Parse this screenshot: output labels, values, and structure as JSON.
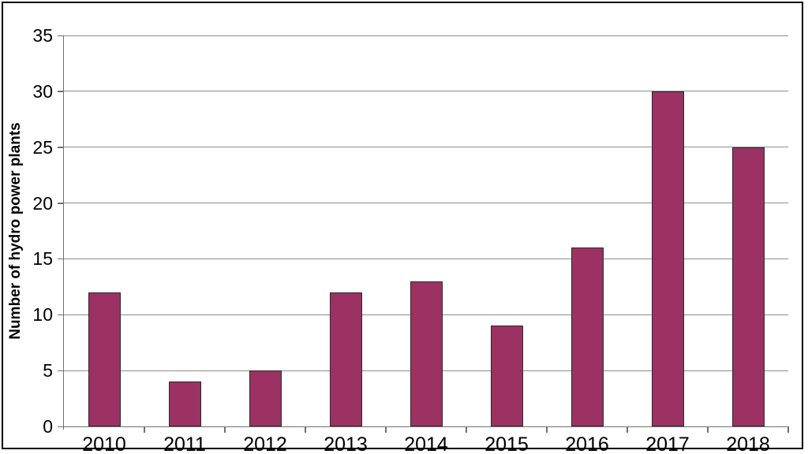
{
  "chart_data": {
    "type": "bar",
    "categories": [
      "2010",
      "2011",
      "2012",
      "2013",
      "2014",
      "2015",
      "2016",
      "2017",
      "2018"
    ],
    "values": [
      12,
      4,
      5,
      12,
      13,
      9,
      16,
      30,
      25
    ],
    "title": "",
    "xlabel": "",
    "ylabel": "Number of hydro power plants",
    "ylim": [
      0,
      35
    ],
    "ytick_step": 5,
    "ytick_labels": [
      "0",
      "5",
      "10",
      "15",
      "20",
      "25",
      "30",
      "35"
    ],
    "grid": true,
    "legend_position": "none",
    "bar_color": "#9C3163",
    "bar_border_color": "#2B2B2B",
    "gridline_color": "#8C8C8C",
    "axis_color": "#707070",
    "text_color": "#000000",
    "background_color": "#FFFFFF",
    "frame_color": "#000000"
  }
}
